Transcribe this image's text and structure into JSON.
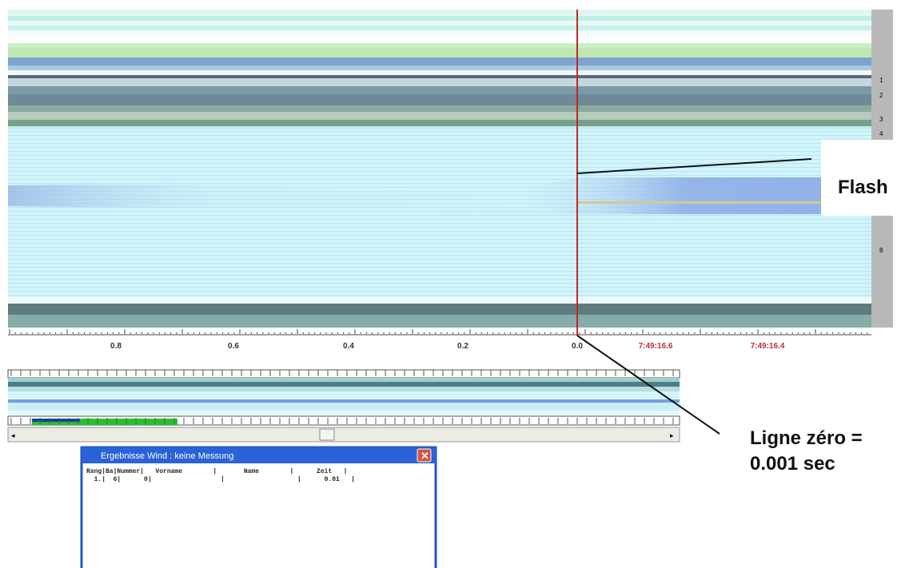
{
  "finish_image": {
    "lane_labels": [
      "1",
      "2",
      "3",
      "4",
      "8"
    ],
    "time_labels": [
      "0.8",
      "0.6",
      "0.4",
      "0.2",
      "0.0",
      "7:49:16.6",
      "7:49:16.4"
    ]
  },
  "annotations": {
    "flash": "Flash",
    "zero_line": [
      "Ligne zéro =",
      "0.001 sec"
    ]
  },
  "results_window": {
    "title": "Ergebnisse  Wind : keine Messung",
    "header": "Rang|Ba|Nummer|   Vorname        |       Name        |      Zeit   |",
    "row": "  1.|  6|      0|                  |                   |      0.01   |"
  }
}
